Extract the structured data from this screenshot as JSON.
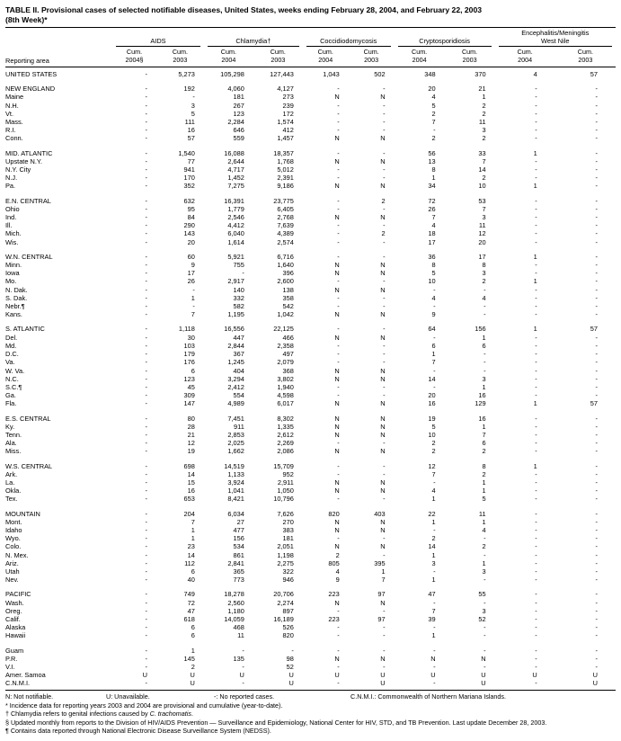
{
  "title": {
    "line1": "TABLE II. Provisional cases of selected notifiable diseases, United States, weeks ending February 28, 2004, and February 22, 2003",
    "line2": "(8th Week)*"
  },
  "header": {
    "reporting_area": "Reporting area",
    "groups": [
      {
        "line1": "",
        "line2": "AIDS",
        "cols": [
          {
            "l1": "Cum.",
            "l2": "2004§"
          },
          {
            "l1": "Cum.",
            "l2": "2003"
          }
        ]
      },
      {
        "line1": "",
        "line2": "Chlamydia†",
        "cols": [
          {
            "l1": "Cum.",
            "l2": "2004"
          },
          {
            "l1": "Cum.",
            "l2": "2003"
          }
        ]
      },
      {
        "line1": "",
        "line2": "Coccidiodomycosis",
        "cols": [
          {
            "l1": "Cum.",
            "l2": "2004"
          },
          {
            "l1": "Cum.",
            "l2": "2003"
          }
        ]
      },
      {
        "line1": "",
        "line2": "Cryptosporidiosis",
        "cols": [
          {
            "l1": "Cum.",
            "l2": "2004"
          },
          {
            "l1": "Cum.",
            "l2": "2003"
          }
        ]
      },
      {
        "line1": "Encephalitis/Meningitis",
        "line2": "West Nile",
        "cols": [
          {
            "l1": "Cum.",
            "l2": "2004"
          },
          {
            "l1": "Cum.",
            "l2": "2003"
          }
        ]
      }
    ]
  },
  "sections": [
    {
      "rows": [
        {
          "area": "UNITED STATES",
          "v": [
            "-",
            "5,273",
            "105,298",
            "127,443",
            "1,043",
            "502",
            "348",
            "370",
            "4",
            "57"
          ]
        }
      ]
    },
    {
      "rows": [
        {
          "area": "NEW ENGLAND",
          "v": [
            "-",
            "192",
            "4,060",
            "4,127",
            "-",
            "-",
            "20",
            "21",
            "-",
            "-"
          ]
        },
        {
          "area": "Maine",
          "v": [
            "-",
            "-",
            "181",
            "273",
            "N",
            "N",
            "4",
            "1",
            "-",
            "-"
          ]
        },
        {
          "area": "N.H.",
          "v": [
            "-",
            "3",
            "267",
            "239",
            "-",
            "-",
            "5",
            "2",
            "-",
            "-"
          ]
        },
        {
          "area": "Vt.",
          "v": [
            "-",
            "5",
            "123",
            "172",
            "-",
            "-",
            "2",
            "2",
            "-",
            "-"
          ]
        },
        {
          "area": "Mass.",
          "v": [
            "-",
            "111",
            "2,284",
            "1,574",
            "-",
            "-",
            "7",
            "11",
            "-",
            "-"
          ]
        },
        {
          "area": "R.I.",
          "v": [
            "-",
            "16",
            "646",
            "412",
            "-",
            "-",
            "-",
            "3",
            "-",
            "-"
          ]
        },
        {
          "area": "Conn.",
          "v": [
            "-",
            "57",
            "559",
            "1,457",
            "N",
            "N",
            "2",
            "2",
            "-",
            "-"
          ]
        }
      ]
    },
    {
      "rows": [
        {
          "area": "MID. ATLANTIC",
          "v": [
            "-",
            "1,540",
            "16,088",
            "18,357",
            "-",
            "-",
            "56",
            "33",
            "1",
            "-"
          ]
        },
        {
          "area": "Upstate N.Y.",
          "v": [
            "-",
            "77",
            "2,644",
            "1,768",
            "N",
            "N",
            "13",
            "7",
            "-",
            "-"
          ]
        },
        {
          "area": "N.Y. City",
          "v": [
            "-",
            "941",
            "4,717",
            "5,012",
            "-",
            "-",
            "8",
            "14",
            "-",
            "-"
          ]
        },
        {
          "area": "N.J.",
          "v": [
            "-",
            "170",
            "1,452",
            "2,391",
            "-",
            "-",
            "1",
            "2",
            "-",
            "-"
          ]
        },
        {
          "area": "Pa.",
          "v": [
            "-",
            "352",
            "7,275",
            "9,186",
            "N",
            "N",
            "34",
            "10",
            "1",
            "-"
          ]
        }
      ]
    },
    {
      "rows": [
        {
          "area": "E.N. CENTRAL",
          "v": [
            "-",
            "632",
            "16,391",
            "23,775",
            "-",
            "2",
            "72",
            "53",
            "-",
            "-"
          ]
        },
        {
          "area": "Ohio",
          "v": [
            "-",
            "95",
            "1,779",
            "6,405",
            "-",
            "-",
            "26",
            "7",
            "-",
            "-"
          ]
        },
        {
          "area": "Ind.",
          "v": [
            "-",
            "84",
            "2,546",
            "2,768",
            "N",
            "N",
            "7",
            "3",
            "-",
            "-"
          ]
        },
        {
          "area": "Ill.",
          "v": [
            "-",
            "290",
            "4,412",
            "7,639",
            "-",
            "-",
            "4",
            "11",
            "-",
            "-"
          ]
        },
        {
          "area": "Mich.",
          "v": [
            "-",
            "143",
            "6,040",
            "4,389",
            "-",
            "2",
            "18",
            "12",
            "-",
            "-"
          ]
        },
        {
          "area": "Wis.",
          "v": [
            "-",
            "20",
            "1,614",
            "2,574",
            "-",
            "-",
            "17",
            "20",
            "-",
            "-"
          ]
        }
      ]
    },
    {
      "rows": [
        {
          "area": "W.N. CENTRAL",
          "v": [
            "-",
            "60",
            "5,921",
            "6,716",
            "-",
            "-",
            "36",
            "17",
            "1",
            "-"
          ]
        },
        {
          "area": "Minn.",
          "v": [
            "-",
            "9",
            "755",
            "1,640",
            "N",
            "N",
            "8",
            "8",
            "-",
            "-"
          ]
        },
        {
          "area": "Iowa",
          "v": [
            "-",
            "17",
            "-",
            "396",
            "N",
            "N",
            "5",
            "3",
            "-",
            "-"
          ]
        },
        {
          "area": "Mo.",
          "v": [
            "-",
            "26",
            "2,917",
            "2,600",
            "-",
            "-",
            "10",
            "2",
            "1",
            "-"
          ]
        },
        {
          "area": "N. Dak.",
          "v": [
            "-",
            "-",
            "140",
            "138",
            "N",
            "N",
            "-",
            "-",
            "-",
            "-"
          ]
        },
        {
          "area": "S. Dak.",
          "v": [
            "-",
            "1",
            "332",
            "358",
            "-",
            "-",
            "4",
            "4",
            "-",
            "-"
          ]
        },
        {
          "area": "Nebr.¶",
          "v": [
            "-",
            "-",
            "582",
            "542",
            "-",
            "-",
            "-",
            "-",
            "-",
            "-"
          ]
        },
        {
          "area": "Kans.",
          "v": [
            "-",
            "7",
            "1,195",
            "1,042",
            "N",
            "N",
            "9",
            "-",
            "-",
            "-"
          ]
        }
      ]
    },
    {
      "rows": [
        {
          "area": "S. ATLANTIC",
          "v": [
            "-",
            "1,118",
            "16,556",
            "22,125",
            "-",
            "-",
            "64",
            "156",
            "1",
            "57"
          ]
        },
        {
          "area": "Del.",
          "v": [
            "-",
            "30",
            "447",
            "466",
            "N",
            "N",
            "-",
            "1",
            "-",
            "-"
          ]
        },
        {
          "area": "Md.",
          "v": [
            "-",
            "103",
            "2,844",
            "2,358",
            "-",
            "-",
            "6",
            "6",
            "-",
            "-"
          ]
        },
        {
          "area": "D.C.",
          "v": [
            "-",
            "179",
            "367",
            "497",
            "-",
            "-",
            "1",
            "-",
            "-",
            "-"
          ]
        },
        {
          "area": "Va.",
          "v": [
            "-",
            "176",
            "1,245",
            "2,079",
            "-",
            "-",
            "7",
            "-",
            "-",
            "-"
          ]
        },
        {
          "area": "W. Va.",
          "v": [
            "-",
            "6",
            "404",
            "368",
            "N",
            "N",
            "-",
            "-",
            "-",
            "-"
          ]
        },
        {
          "area": "N.C.",
          "v": [
            "-",
            "123",
            "3,294",
            "3,802",
            "N",
            "N",
            "14",
            "3",
            "-",
            "-"
          ]
        },
        {
          "area": "S.C.¶",
          "v": [
            "-",
            "45",
            "2,412",
            "1,940",
            "-",
            "-",
            "-",
            "1",
            "-",
            "-"
          ]
        },
        {
          "area": "Ga.",
          "v": [
            "-",
            "309",
            "554",
            "4,598",
            "-",
            "-",
            "20",
            "16",
            "-",
            "-"
          ]
        },
        {
          "area": "Fla.",
          "v": [
            "-",
            "147",
            "4,989",
            "6,017",
            "N",
            "N",
            "16",
            "129",
            "1",
            "57"
          ]
        }
      ]
    },
    {
      "rows": [
        {
          "area": "E.S. CENTRAL",
          "v": [
            "-",
            "80",
            "7,451",
            "8,302",
            "N",
            "N",
            "19",
            "16",
            "-",
            "-"
          ]
        },
        {
          "area": "Ky.",
          "v": [
            "-",
            "28",
            "911",
            "1,335",
            "N",
            "N",
            "5",
            "1",
            "-",
            "-"
          ]
        },
        {
          "area": "Tenn.",
          "v": [
            "-",
            "21",
            "2,853",
            "2,612",
            "N",
            "N",
            "10",
            "7",
            "-",
            "-"
          ]
        },
        {
          "area": "Ala.",
          "v": [
            "-",
            "12",
            "2,025",
            "2,269",
            "-",
            "-",
            "2",
            "6",
            "-",
            "-"
          ]
        },
        {
          "area": "Miss.",
          "v": [
            "-",
            "19",
            "1,662",
            "2,086",
            "N",
            "N",
            "2",
            "2",
            "-",
            "-"
          ]
        }
      ]
    },
    {
      "rows": [
        {
          "area": "W.S. CENTRAL",
          "v": [
            "-",
            "698",
            "14,519",
            "15,709",
            "-",
            "-",
            "12",
            "8",
            "1",
            "-"
          ]
        },
        {
          "area": "Ark.",
          "v": [
            "-",
            "14",
            "1,133",
            "952",
            "-",
            "-",
            "7",
            "2",
            "-",
            "-"
          ]
        },
        {
          "area": "La.",
          "v": [
            "-",
            "15",
            "3,924",
            "2,911",
            "N",
            "N",
            "-",
            "1",
            "-",
            "-"
          ]
        },
        {
          "area": "Okla.",
          "v": [
            "-",
            "16",
            "1,041",
            "1,050",
            "N",
            "N",
            "4",
            "1",
            "-",
            "-"
          ]
        },
        {
          "area": "Tex.",
          "v": [
            "-",
            "653",
            "8,421",
            "10,796",
            "-",
            "-",
            "1",
            "5",
            "-",
            "-"
          ]
        }
      ]
    },
    {
      "rows": [
        {
          "area": "MOUNTAIN",
          "v": [
            "-",
            "204",
            "6,034",
            "7,626",
            "820",
            "403",
            "22",
            "11",
            "-",
            "-"
          ]
        },
        {
          "area": "Mont.",
          "v": [
            "-",
            "7",
            "27",
            "270",
            "N",
            "N",
            "1",
            "1",
            "-",
            "-"
          ]
        },
        {
          "area": "Idaho",
          "v": [
            "-",
            "1",
            "477",
            "383",
            "N",
            "N",
            "-",
            "4",
            "-",
            "-"
          ]
        },
        {
          "area": "Wyo.",
          "v": [
            "-",
            "1",
            "156",
            "181",
            "-",
            "-",
            "2",
            "-",
            "-",
            "-"
          ]
        },
        {
          "area": "Colo.",
          "v": [
            "-",
            "23",
            "534",
            "2,051",
            "N",
            "N",
            "14",
            "2",
            "-",
            "-"
          ]
        },
        {
          "area": "N. Mex.",
          "v": [
            "-",
            "14",
            "861",
            "1,198",
            "2",
            "-",
            "1",
            "-",
            "-",
            "-"
          ]
        },
        {
          "area": "Ariz.",
          "v": [
            "-",
            "112",
            "2,841",
            "2,275",
            "805",
            "395",
            "3",
            "1",
            "-",
            "-"
          ]
        },
        {
          "area": "Utah",
          "v": [
            "-",
            "6",
            "365",
            "322",
            "4",
            "1",
            "-",
            "3",
            "-",
            "-"
          ]
        },
        {
          "area": "Nev.",
          "v": [
            "-",
            "40",
            "773",
            "946",
            "9",
            "7",
            "1",
            "-",
            "-",
            "-"
          ]
        }
      ]
    },
    {
      "rows": [
        {
          "area": "PACIFIC",
          "v": [
            "-",
            "749",
            "18,278",
            "20,706",
            "223",
            "97",
            "47",
            "55",
            "-",
            "-"
          ]
        },
        {
          "area": "Wash.",
          "v": [
            "-",
            "72",
            "2,560",
            "2,274",
            "N",
            "N",
            "-",
            "-",
            "-",
            "-"
          ]
        },
        {
          "area": "Oreg.",
          "v": [
            "-",
            "47",
            "1,180",
            "897",
            "-",
            "-",
            "7",
            "3",
            "-",
            "-"
          ]
        },
        {
          "area": "Calif.",
          "v": [
            "-",
            "618",
            "14,059",
            "16,189",
            "223",
            "97",
            "39",
            "52",
            "-",
            "-"
          ]
        },
        {
          "area": "Alaska",
          "v": [
            "-",
            "6",
            "468",
            "526",
            "-",
            "-",
            "-",
            "-",
            "-",
            "-"
          ]
        },
        {
          "area": "Hawaii",
          "v": [
            "-",
            "6",
            "11",
            "820",
            "-",
            "-",
            "1",
            "-",
            "-",
            "-"
          ]
        }
      ]
    },
    {
      "rows": [
        {
          "area": "Guam",
          "v": [
            "-",
            "1",
            "-",
            "-",
            "-",
            "-",
            "-",
            "-",
            "-",
            "-"
          ]
        },
        {
          "area": "P.R.",
          "v": [
            "-",
            "145",
            "135",
            "98",
            "N",
            "N",
            "N",
            "N",
            "-",
            "-"
          ]
        },
        {
          "area": "V.I.",
          "v": [
            "-",
            "2",
            "-",
            "52",
            "-",
            "-",
            "-",
            "-",
            "-",
            "-"
          ]
        },
        {
          "area": "Amer. Samoa",
          "v": [
            "U",
            "U",
            "U",
            "U",
            "U",
            "U",
            "U",
            "U",
            "U",
            "U"
          ]
        },
        {
          "area": "C.N.M.I.",
          "v": [
            "-",
            "U",
            "-",
            "U",
            "-",
            "U",
            "-",
            "U",
            "-",
            "U"
          ]
        }
      ]
    }
  ],
  "footnotes": {
    "legend": [
      "N: Not notifiable.",
      "U: Unavailable.",
      "-: No reported cases.",
      "C.N.M.I.: Commonwealth of Northern Mariana Islands."
    ],
    "star": "* Incidence data for reporting years 2003 and 2004 are provisional and cumulative (year-to-date).",
    "dagger_pre": "† Chlamydia refers to genital infections caused by ",
    "dagger_italic": "C. trachomatis",
    "dagger_post": ".",
    "section": "§ Updated monthly from reports to the Division of HIV/AIDS Prevention — Surveillance and Epidemiology, National Center for HIV, STD, and TB Prevention. Last update December 28, 2003.",
    "para": "¶ Contains data reported through National Electronic Disease Surveillance System (NEDSS)."
  }
}
